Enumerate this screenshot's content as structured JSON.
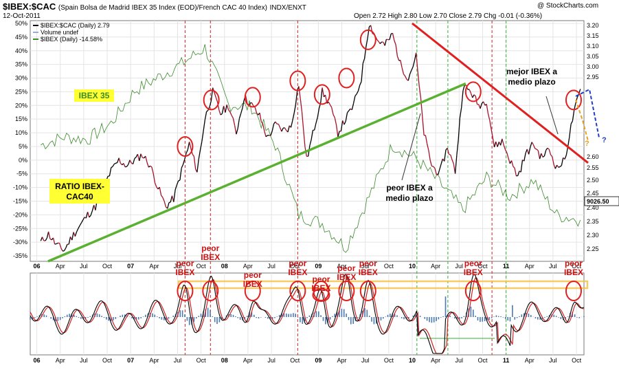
{
  "header": {
    "symbol": "$IBEX:$CAC",
    "description": "(Spain Bolsa de Madrid IBEX 35 Index (EOD)/French CAC 40 Index)",
    "exchange": "INDX/ENXT",
    "date": "12-Oct-2011",
    "ohlc": "Open 2.72  High 2.80  Low 2.70  Close 2.79  Chg -0.01 (-0.36%)",
    "brand": "@ StockCharts.com"
  },
  "colors": {
    "ratio": "#000000",
    "ratio_down": "#a8102a",
    "ibex": "#3a8a2a",
    "trend_support": "#5ab030",
    "trend_resist": "#e02020",
    "circle": "#e02020",
    "vline_red": "#d02020",
    "vline_green": "#30b030",
    "label_bg": "#ffff33",
    "band": "#f7c34a",
    "histogram": "#4a78b0"
  },
  "chart_data": [
    {
      "type": "line",
      "panel": "main",
      "legend": [
        {
          "label": "$IBEX:$CAC (Daily) 2.79",
          "color": "#000000"
        },
        {
          "label": "Volume undef",
          "color": "#9aaad0"
        },
        {
          "label": "$IBEX (Daily) -14.58%",
          "color": "#3a8a2a"
        }
      ],
      "left_axis": {
        "unit": "%",
        "ticks": [
          "50%",
          "45%",
          "40%",
          "35%",
          "30%",
          "25%",
          "20%",
          "15%",
          "10%",
          "5%",
          "0%",
          "-5%",
          "-10%",
          "-15%",
          "-20%",
          "-25%",
          "-30%",
          "-35%"
        ],
        "ylim": [
          -37,
          51
        ]
      },
      "right_axis": {
        "ticks": [
          "3.20",
          "3.15",
          "3.10",
          "3.05",
          "3.00",
          "2.95",
          "2.60",
          "2.55",
          "2.50",
          "2.45",
          "2.40",
          "2.35",
          "2.30",
          "2.25"
        ],
        "price_label": "9026.50"
      },
      "x_ticks": [
        {
          "label": "06",
          "bold": true
        },
        {
          "label": "Apr"
        },
        {
          "label": "Jul"
        },
        {
          "label": "Oct"
        },
        {
          "label": "07",
          "bold": true
        },
        {
          "label": "Apr"
        },
        {
          "label": "Jul"
        },
        {
          "label": "Oct"
        },
        {
          "label": "08",
          "bold": true
        },
        {
          "label": "Apr"
        },
        {
          "label": "Jul"
        },
        {
          "label": "Oct"
        },
        {
          "label": "09",
          "bold": true
        },
        {
          "label": "Apr"
        },
        {
          "label": "Jul"
        },
        {
          "label": "Oct"
        },
        {
          "label": "10",
          "bold": true
        },
        {
          "label": "Apr"
        },
        {
          "label": "Jul"
        },
        {
          "label": "Oct"
        },
        {
          "label": "11",
          "bold": true
        },
        {
          "label": "Apr"
        },
        {
          "label": "Jul"
        },
        {
          "label": "Oct"
        }
      ],
      "series": [
        {
          "name": "$IBEX:$CAC (Daily)",
          "x": [
            "2006-01",
            "2006-02",
            "2006-03",
            "2006-04",
            "2006-05",
            "2006-06",
            "2006-07",
            "2006-08",
            "2006-09",
            "2006-10",
            "2006-11",
            "2006-12",
            "2007-01",
            "2007-02",
            "2007-03",
            "2007-04",
            "2007-05",
            "2007-06",
            "2007-07",
            "2007-08",
            "2007-09",
            "2007-10",
            "2007-11",
            "2007-12",
            "2008-01",
            "2008-02",
            "2008-03",
            "2008-04",
            "2008-05",
            "2008-06",
            "2008-07",
            "2008-08",
            "2008-09",
            "2008-10",
            "2008-11",
            "2008-12",
            "2009-01",
            "2009-02",
            "2009-03",
            "2009-04",
            "2009-05",
            "2009-06",
            "2009-07",
            "2009-08",
            "2009-09",
            "2009-10",
            "2009-11",
            "2009-12",
            "2010-01",
            "2010-02",
            "2010-03",
            "2010-04",
            "2010-05",
            "2010-06",
            "2010-07",
            "2010-08",
            "2010-09",
            "2010-10",
            "2010-11",
            "2010-12",
            "2011-01",
            "2011-02",
            "2011-03",
            "2011-04",
            "2011-05",
            "2011-06",
            "2011-07",
            "2011-08",
            "2011-09",
            "2011-10"
          ],
          "values": [
            -30,
            -27,
            -31,
            -33,
            -28,
            -24,
            -20,
            -17,
            -10,
            -4,
            0,
            -2,
            0,
            2,
            -2,
            -10,
            -17,
            -14,
            -4,
            6,
            -4,
            15,
            25,
            17,
            20,
            10,
            23,
            20,
            16,
            8,
            13,
            11,
            12,
            28,
            0,
            12,
            25,
            20,
            10,
            15,
            20,
            30,
            50,
            44,
            42,
            46,
            35,
            30,
            38,
            10,
            -2,
            -5,
            5,
            -4,
            27,
            25,
            20,
            22,
            5,
            7,
            0,
            -6,
            2,
            6,
            1,
            4,
            -3,
            0,
            15,
            26
          ]
        },
        {
          "name": "$IBEX (Daily)",
          "x": [
            "2006-01",
            "2006-04",
            "2006-07",
            "2006-10",
            "2007-01",
            "2007-04",
            "2007-07",
            "2007-10",
            "2008-01",
            "2008-04",
            "2008-07",
            "2008-10",
            "2009-01",
            "2009-04",
            "2009-07",
            "2009-10",
            "2010-01",
            "2010-04",
            "2010-07",
            "2010-10",
            "2011-01",
            "2011-04",
            "2011-07",
            "2011-10"
          ],
          "values": [
            11800,
            12100,
            12000,
            12600,
            13800,
            14300,
            14800,
            15400,
            13300,
            13200,
            11800,
            9200,
            8900,
            8000,
            9900,
            11800,
            11300,
            10400,
            9400,
            10600,
            9900,
            10500,
            9200,
            9026
          ]
        }
      ],
      "annotations": {
        "ibex35_label": "IBEX 35",
        "ratio_label": "RATIO IBEX-\nCAC40",
        "peor_ibex": "peor IBEX a\nmedio plazo",
        "mejor_ibex": "mejor IBEX a\nmedio plazo",
        "question": "?"
      }
    },
    {
      "type": "line",
      "panel": "oscillator",
      "x_ticks": [
        "06",
        "Apr",
        "Jul",
        "Oct",
        "07",
        "Apr",
        "Jul",
        "Oct",
        "08",
        "Apr",
        "Jul",
        "Oct",
        "09",
        "Apr",
        "Jul",
        "Oct",
        "10",
        "Apr",
        "Jul",
        "Oct",
        "11",
        "Apr",
        "Jul",
        "Oct"
      ],
      "series": [
        {
          "name": "oscillator",
          "color": "#000000"
        },
        {
          "name": "signal",
          "color": "#d02020"
        },
        {
          "name": "histogram",
          "color": "#4a78b0"
        }
      ],
      "peak_labels": [
        "peor\nIBEX",
        "peor\nIBEX",
        "peor\nIBEX",
        "peor\nIBEX",
        "peor\nIBEX",
        "peor\nIBEX",
        "peor\nIBEX",
        "peor\nIBEX",
        "peor\nIBEX",
        "peor\nIBEX"
      ]
    }
  ]
}
